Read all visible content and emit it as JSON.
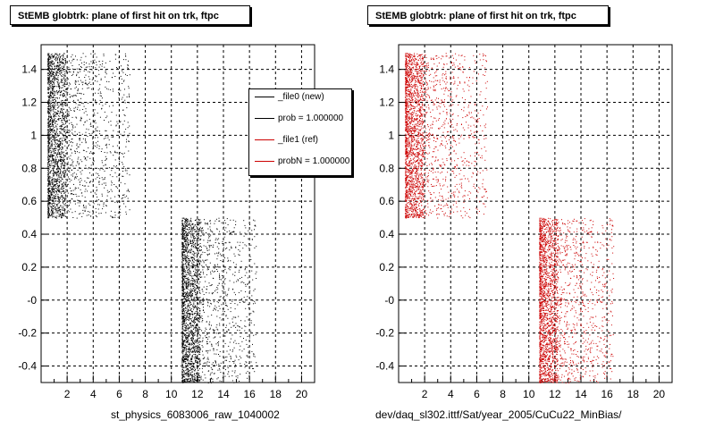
{
  "colors": {
    "new": "#000000",
    "ref": "#cc0000",
    "grid": "#000000",
    "background": "#ffffff"
  },
  "panels": [
    {
      "title": "StEMB globtrk: plane of first hit on trk, ftpc",
      "xlabel": "st_physics_6083006_raw_1040002",
      "marker_color": "#000000",
      "legend": [
        {
          "label": "_file0 (new)",
          "color": "#000000"
        },
        {
          "label": "prob = 1.000000",
          "color": "#000000"
        },
        {
          "label": "_file1 (ref)",
          "color": "#cc0000"
        },
        {
          "label": "probN = 1.000000",
          "color": "#cc0000"
        }
      ]
    },
    {
      "title": "StEMB globtrk: plane of first hit on trk, ftpc",
      "xlabel": "dev/daq_sl302.ittf/Sat/year_2005/CuCu22_MinBias/",
      "marker_color": "#cc0000"
    }
  ],
  "footer": " ",
  "chart_data": [
    {
      "type": "scatter",
      "title": "StEMB globtrk: plane of first hit on trk, ftpc",
      "xlabel": "st_physics_6083006_raw_1040002",
      "ylabel": "",
      "xlim": [
        0,
        21
      ],
      "ylim": [
        -0.5,
        1.55
      ],
      "x_ticks": [
        2,
        4,
        6,
        8,
        10,
        12,
        14,
        16,
        18,
        20
      ],
      "y_ticks": [
        -0.4,
        -0.2,
        -0.0,
        0.2,
        0.4,
        0.6,
        0.8,
        1,
        1.2,
        1.4
      ],
      "y_tick_labels": [
        "-0.4",
        "-0.2",
        "-0",
        "0.2",
        "0.4",
        "0.6",
        "0.8",
        "1",
        "1.2",
        "1.4"
      ],
      "grid": true,
      "legend_position": "top-right",
      "series": [
        {
          "name": "_file0 (new)",
          "color": "#000000",
          "clusters": [
            {
              "x": [
                0.2,
                6.8
              ],
              "y": [
                0.5,
                1.5
              ],
              "density": "high near x=0.5-2, decreasing to x=6.8"
            },
            {
              "x": [
                10.5,
                16.5
              ],
              "y": [
                -0.5,
                0.5
              ],
              "density": "high near x=10.5-12, decreasing to x=16.5"
            }
          ]
        }
      ]
    },
    {
      "type": "scatter",
      "title": "StEMB globtrk: plane of first hit on trk, ftpc",
      "xlabel": "dev/daq_sl302.ittf/Sat/year_2005/CuCu22_MinBias/",
      "ylabel": "",
      "xlim": [
        0,
        21
      ],
      "ylim": [
        -0.5,
        1.55
      ],
      "x_ticks": [
        2,
        4,
        6,
        8,
        10,
        12,
        14,
        16,
        18,
        20
      ],
      "y_ticks": [
        -0.4,
        -0.2,
        -0.0,
        0.2,
        0.4,
        0.6,
        0.8,
        1,
        1.2,
        1.4
      ],
      "y_tick_labels": [
        "-0.4",
        "-0.2",
        "-0",
        "0.2",
        "0.4",
        "0.6",
        "0.8",
        "1",
        "1.2",
        "1.4"
      ],
      "grid": true,
      "series": [
        {
          "name": "_file1 (ref)",
          "color": "#cc0000",
          "clusters": [
            {
              "x": [
                0.2,
                6.8
              ],
              "y": [
                0.5,
                1.5
              ],
              "density": "high near x=0.5-2, decreasing to x=6.8"
            },
            {
              "x": [
                10.5,
                16.5
              ],
              "y": [
                -0.5,
                0.5
              ],
              "density": "high near x=10.5-12, decreasing to x=16.5"
            }
          ]
        }
      ]
    }
  ]
}
